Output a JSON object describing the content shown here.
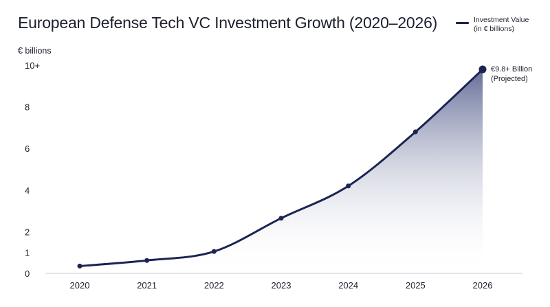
{
  "chart_data": {
    "type": "area",
    "title": "European Defense Tech VC Investment Growth (2020–2026)",
    "ylabel": "€ billions",
    "xlabel": "",
    "categories": [
      "2020",
      "2021",
      "2022",
      "2023",
      "2024",
      "2025",
      "2026"
    ],
    "series": [
      {
        "name": "Investment Value (in € billions)",
        "values": [
          0.35,
          0.62,
          1.05,
          2.65,
          4.2,
          6.8,
          9.8
        ]
      }
    ],
    "yticks": [
      {
        "value": 0,
        "label": "0"
      },
      {
        "value": 1,
        "label": "1"
      },
      {
        "value": 2,
        "label": "2"
      },
      {
        "value": 4,
        "label": "4"
      },
      {
        "value": 6,
        "label": "6"
      },
      {
        "value": 8,
        "label": "8"
      },
      {
        "value": 10,
        "label": "10+"
      }
    ],
    "ylim": [
      0,
      10
    ],
    "grid": false,
    "legend_position": "top-right",
    "annotation": {
      "category": "2026",
      "lines": [
        "€9.8+ Billion",
        "(Projected)"
      ]
    },
    "colors": {
      "line": "#1b2452",
      "fill_top": "#4a5486",
      "fill_bottom": "#ffffff",
      "axis": "#c9cbd3"
    }
  },
  "legend": {
    "label": "Investment Value\n(in € billions)"
  }
}
